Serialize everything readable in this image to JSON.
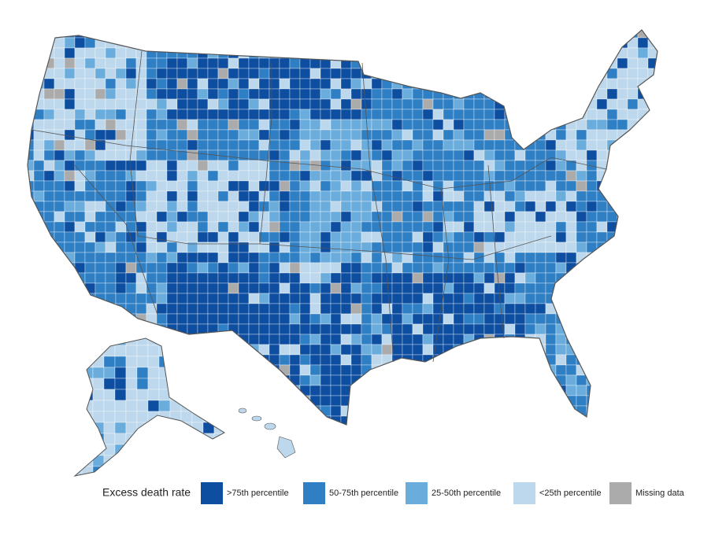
{
  "legend": {
    "title": "Excess death rate",
    "items": [
      {
        "label": ">75th percentile",
        "color": "#0d4ea0"
      },
      {
        "label": "50-75th percentile",
        "color": "#2f7fc4"
      },
      {
        "label": "25-50th percentile",
        "color": "#6aaddc"
      },
      {
        "label": "<25th percentile",
        "color": "#bdd8ec"
      },
      {
        "label": "Missing data",
        "color": "#ababab"
      }
    ]
  }
}
